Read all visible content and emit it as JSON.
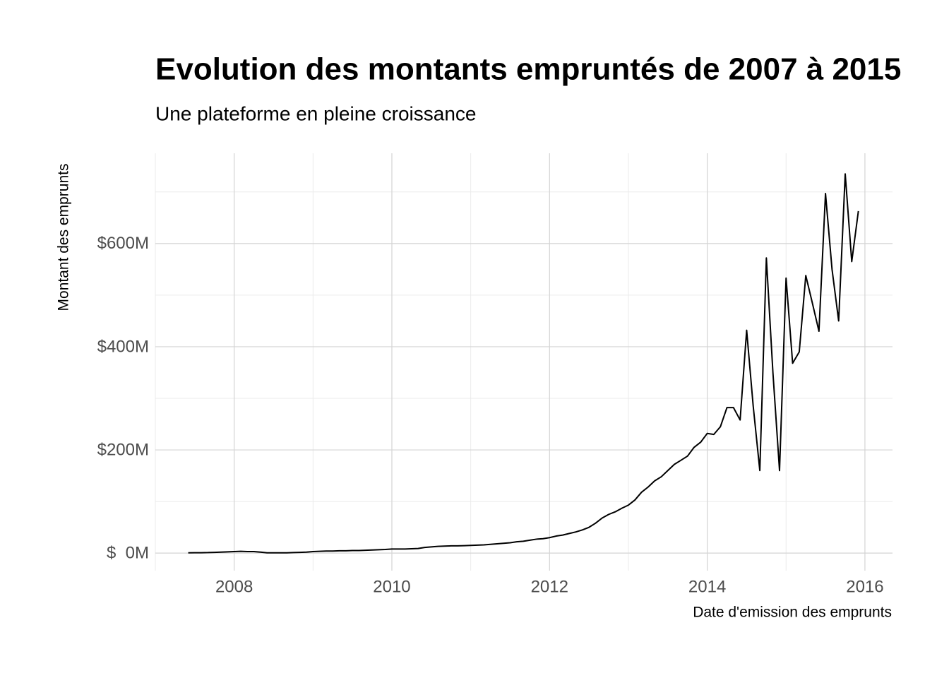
{
  "chart_data": {
    "type": "line",
    "title": "Evolution des montants empruntés de 2007 à 2015",
    "subtitle": "Une plateforme en pleine croissance",
    "x_label": "Date d'emission des emprunts",
    "y_label": "Montant des emprunts",
    "xlim": [
      2007,
      2016.35
    ],
    "ylim": [
      -34000000,
      775000000
    ],
    "xticks": [
      2008,
      2010,
      2012,
      2014,
      2016
    ],
    "x_minor_grid": [
      2007,
      2009,
      2011,
      2013,
      2015
    ],
    "yticks": [
      {
        "value": 0,
        "label": "$  0M"
      },
      {
        "value": 200000000,
        "label": "$200M"
      },
      {
        "value": 400000000,
        "label": "$400M"
      },
      {
        "value": 600000000,
        "label": "$600M"
      }
    ],
    "y_minor_grid": [
      100000000,
      300000000,
      500000000,
      700000000
    ],
    "grid": true,
    "color": "#000000",
    "x": [
      2007.417,
      2007.5,
      2007.583,
      2007.667,
      2007.75,
      2007.833,
      2007.917,
      2008,
      2008.083,
      2008.167,
      2008.25,
      2008.333,
      2008.417,
      2008.5,
      2008.583,
      2008.667,
      2008.75,
      2008.833,
      2008.917,
      2009,
      2009.083,
      2009.167,
      2009.25,
      2009.333,
      2009.417,
      2009.5,
      2009.583,
      2009.667,
      2009.75,
      2009.833,
      2009.917,
      2010,
      2010.083,
      2010.167,
      2010.25,
      2010.333,
      2010.417,
      2010.5,
      2010.583,
      2010.667,
      2010.75,
      2010.833,
      2010.917,
      2011,
      2011.083,
      2011.167,
      2011.25,
      2011.333,
      2011.417,
      2011.5,
      2011.583,
      2011.667,
      2011.75,
      2011.833,
      2011.917,
      2012,
      2012.083,
      2012.167,
      2012.25,
      2012.333,
      2012.417,
      2012.5,
      2012.583,
      2012.667,
      2012.75,
      2012.833,
      2012.917,
      2013,
      2013.083,
      2013.167,
      2013.25,
      2013.333,
      2013.417,
      2013.5,
      2013.583,
      2013.667,
      2013.75,
      2013.833,
      2013.917,
      2014,
      2014.083,
      2014.167,
      2014.25,
      2014.333,
      2014.417,
      2014.5,
      2014.583,
      2014.667,
      2014.75,
      2014.833,
      2014.917,
      2015,
      2015.083,
      2015.167,
      2015.25,
      2015.333,
      2015.417,
      2015.5,
      2015.583,
      2015.667,
      2015.75,
      2015.833,
      2015.917
    ],
    "values": [
      500000,
      700000,
      800000,
      1000000,
      1500000,
      2000000,
      2500000,
      3000000,
      3500000,
      3000000,
      3000000,
      2000000,
      500000,
      500000,
      600000,
      600000,
      1000000,
      1500000,
      2000000,
      3000000,
      3500000,
      4000000,
      4000000,
      4500000,
      4500000,
      5000000,
      5000000,
      5500000,
      6000000,
      6500000,
      7000000,
      8000000,
      8000000,
      8000000,
      8500000,
      9000000,
      11000000,
      12000000,
      13000000,
      13500000,
      14000000,
      14000000,
      14500000,
      15000000,
      15500000,
      16000000,
      17000000,
      18000000,
      19000000,
      20000000,
      22000000,
      23000000,
      25000000,
      27000000,
      28000000,
      30000000,
      33000000,
      35000000,
      38000000,
      41000000,
      45000000,
      50000000,
      58000000,
      68000000,
      75000000,
      80000000,
      87000000,
      93000000,
      103000000,
      118000000,
      128000000,
      140000000,
      148000000,
      160000000,
      172000000,
      180000000,
      188000000,
      205000000,
      215000000,
      232000000,
      230000000,
      245000000,
      282000000,
      282000000,
      258000000,
      432000000,
      285000000,
      160000000,
      572000000,
      350000000,
      160000000,
      533000000,
      368000000,
      390000000,
      538000000,
      485000000,
      430000000,
      697000000,
      550000000,
      450000000,
      735000000,
      565000000,
      663000000
    ]
  }
}
